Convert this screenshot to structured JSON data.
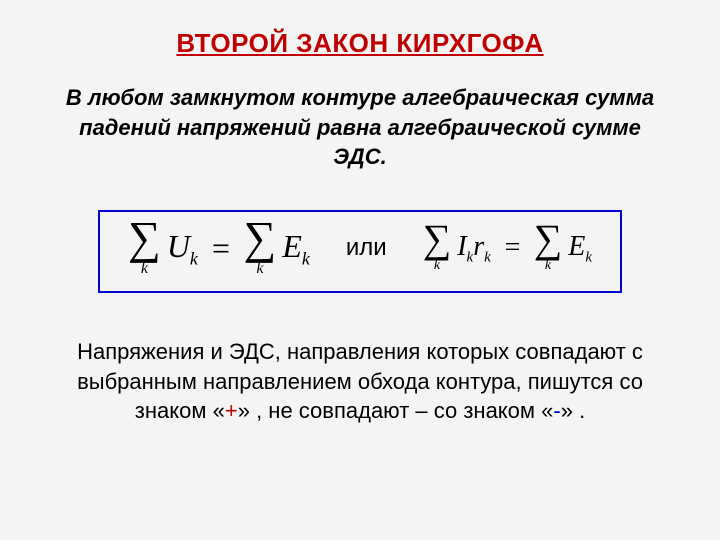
{
  "title": "ВТОРОЙ  ЗАКОН  КИРХГОФА",
  "definition": "В любом замкнутом контуре алгебраическая сумма падений напряжений равна алгебраической сумме ЭДС.",
  "formula": {
    "left": {
      "sum1_idx": "k",
      "sum1_var": "U",
      "sum1_sub": "k",
      "eq": "=",
      "sum2_idx": "k",
      "sum2_var": "E",
      "sum2_sub": "k"
    },
    "or": "или",
    "right": {
      "sum1_idx": "k",
      "sum1_var1": "I",
      "sum1_sub1": "k",
      "sum1_var2": "r",
      "sum1_sub2": "k",
      "eq": "=",
      "sum2_idx": "k",
      "sum2_var": "E",
      "sum2_sub": "k"
    }
  },
  "note": {
    "part1": "Напряжения и ЭДС, направления которых совпадают с выбранным направлением обхода контура, пишутся со знаком «",
    "plus": "+",
    "part2": "» , не совпадают – со знаком «",
    "minus": "-",
    "part3": "» ."
  },
  "colors": {
    "title": "#c00000",
    "border": "#0000cc",
    "plus": "#c00000",
    "minus": "#0000cc",
    "background": "#f4f4f4"
  }
}
